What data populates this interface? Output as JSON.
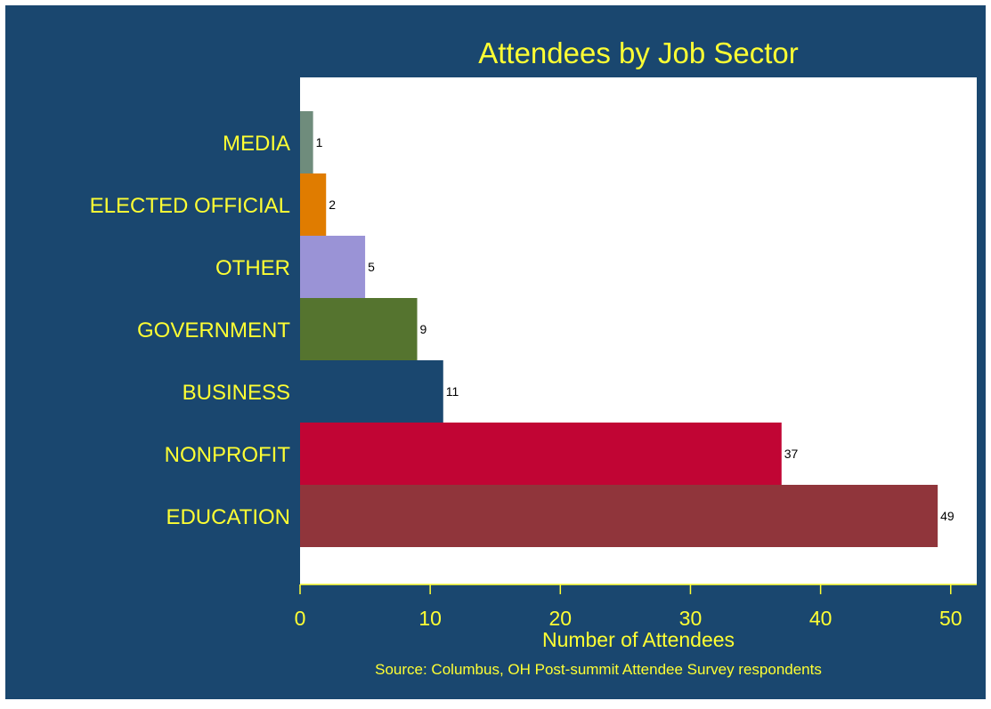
{
  "chart_data": {
    "type": "bar",
    "orientation": "horizontal",
    "title": "Attendees by Job Sector",
    "xlabel": "Number of Attendees",
    "note": "Source: Columbus, OH Post-summit Attendee Survey respondents",
    "categories": [
      "MEDIA",
      "ELECTED OFFICIAL",
      "OTHER",
      "GOVERNMENT",
      "BUSINESS",
      "NONPROFIT",
      "EDUCATION"
    ],
    "values": [
      1,
      2,
      5,
      9,
      11,
      37,
      49
    ],
    "colors": [
      "#6f8c7c",
      "#e07c00",
      "#9a93d6",
      "#55742f",
      "#1a476f",
      "#c10534",
      "#90353b"
    ],
    "xlim": [
      0,
      52
    ],
    "xticks": [
      0,
      10,
      20,
      30,
      40,
      50
    ],
    "grid": false,
    "legend": "none"
  },
  "colors": {
    "background": "#1a476f",
    "plot_area": "#ffffff",
    "text": "#ffff33",
    "value_label": "#000000"
  }
}
